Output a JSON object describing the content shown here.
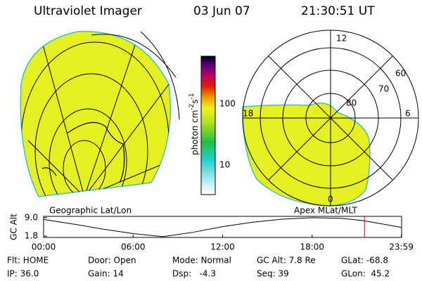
{
  "header": {
    "instrument": "Ultraviolet Imager",
    "date": "03 Jun 07",
    "time": "21:30:51 UT"
  },
  "colorbar": {
    "ticks": [
      "100",
      "10"
    ],
    "label_parts": [
      "photon cm",
      "-2",
      "s",
      "-1"
    ]
  },
  "left_panel": {
    "caption": "Geographic Lat/Lon"
  },
  "right_panel": {
    "caption": "Apex MLat/MLT",
    "mlt_labels": [
      "12",
      "18",
      "6",
      "0"
    ],
    "mlat_labels": [
      "60",
      "70",
      "80"
    ]
  },
  "chart_data": {
    "type": "line",
    "ylabel": "GC Alt",
    "x": [
      0,
      2,
      4,
      6,
      8,
      10,
      12,
      14,
      16,
      18,
      20,
      21.5,
      24
    ],
    "values": [
      8.3,
      6.5,
      4.5,
      2.8,
      1.6,
      3.3,
      5.5,
      7.2,
      8.4,
      9.0,
      8.7,
      7.8,
      5.2
    ],
    "color": "#000000",
    "marker_x": 21.51,
    "marker_color": "#e00000",
    "xlim": [
      0,
      24
    ],
    "ylim": [
      1.3,
      9.5
    ],
    "xticks": [
      {
        "value": 0,
        "label": "00:00"
      },
      {
        "value": 6,
        "label": "06:00"
      },
      {
        "value": 12,
        "label": "12:00"
      },
      {
        "value": 18,
        "label": "18:00"
      },
      {
        "value": 23.98,
        "label": "23:59"
      }
    ],
    "yticks": [
      {
        "value": 9,
        "label": "9.0"
      },
      {
        "value": 1.8,
        "label": "1.8"
      }
    ]
  },
  "status": [
    [
      "Flt: HOME",
      "IP: 36.0"
    ],
    [
      "Door: Open",
      "Gain: 14"
    ],
    [
      "Mode: Normal",
      "Dsp:   -4.3"
    ],
    [
      "GC Alt: 7.8 Re",
      "Seq: 39"
    ],
    [
      "GLat: -68.8",
      "GLon:  45.2"
    ]
  ]
}
